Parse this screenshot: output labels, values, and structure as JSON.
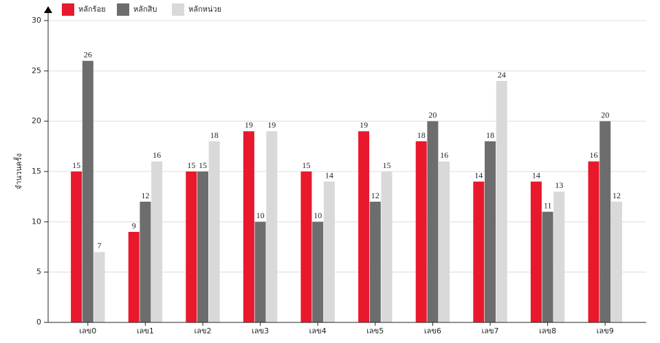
{
  "chart_data": {
    "type": "bar",
    "y_label": "จำนวนครั้ง",
    "categories": [
      "เลข0",
      "เลข1",
      "เลข2",
      "เลข3",
      "เลข4",
      "เลข5",
      "เลข6",
      "เลข7",
      "เลข8",
      "เลข9"
    ],
    "series": [
      {
        "name": "หลักร้อย",
        "color": "#e8192c",
        "values": [
          15,
          9,
          15,
          19,
          15,
          19,
          18,
          14,
          14,
          16
        ]
      },
      {
        "name": "หลักสิบ",
        "color": "#6d6d6d",
        "values": [
          26,
          12,
          15,
          10,
          10,
          12,
          20,
          18,
          11,
          20
        ]
      },
      {
        "name": "หลักหน่วย",
        "color": "#d9d9d9",
        "values": [
          7,
          16,
          18,
          19,
          14,
          15,
          16,
          24,
          13,
          12
        ]
      }
    ],
    "ylim": [
      0,
      30
    ],
    "yticks": [
      0,
      5,
      10,
      15,
      20,
      25,
      30
    ],
    "grid": true
  }
}
